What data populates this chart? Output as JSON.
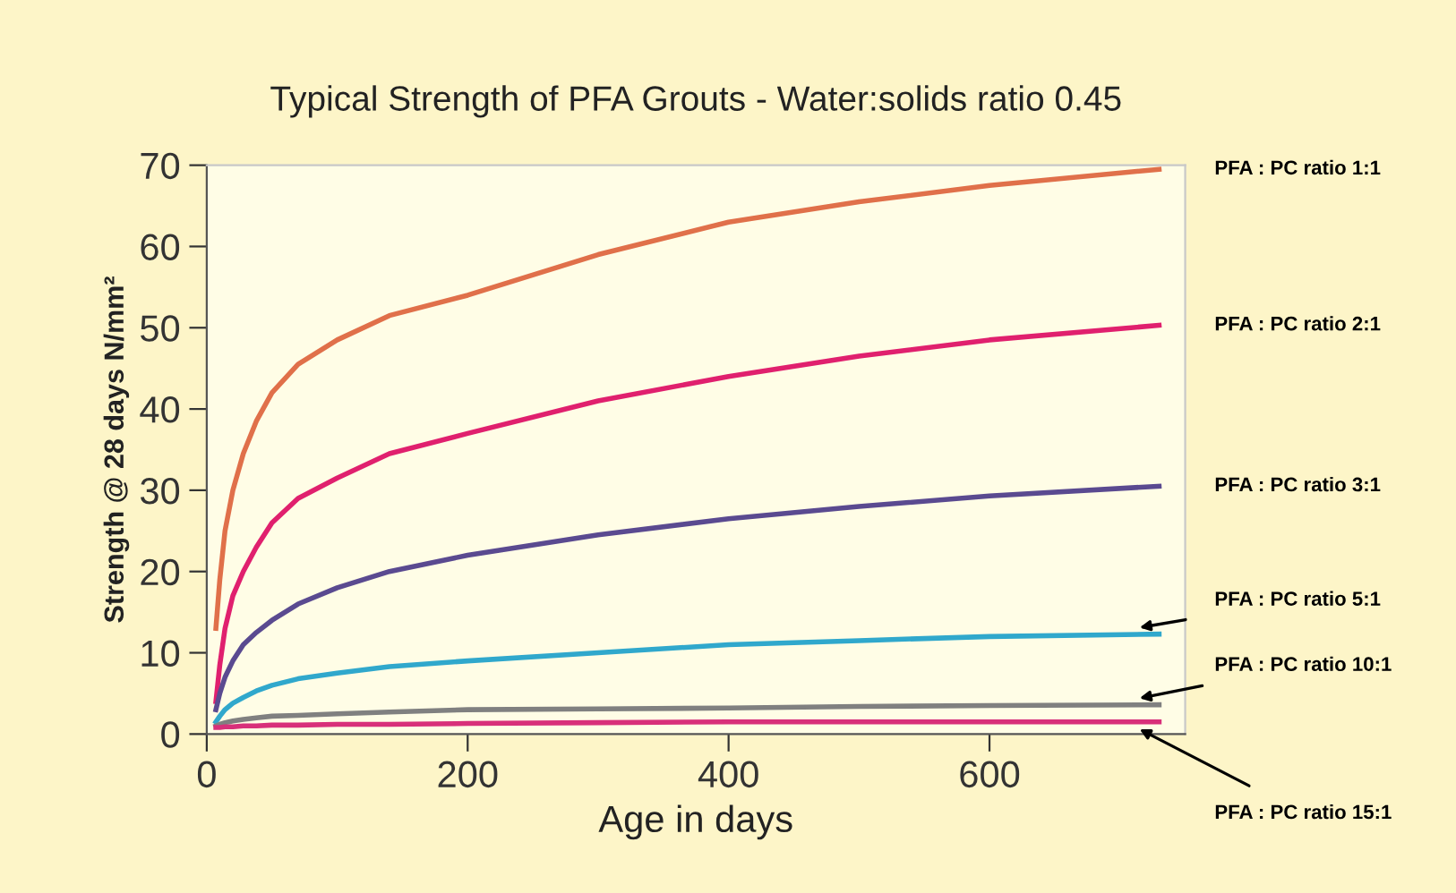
{
  "chart_data": {
    "type": "line",
    "title": "Typical Strength of PFA Grouts - Water:solids ratio 0.45",
    "xlabel": "Age in days",
    "ylabel": "Strength @ 28 days N/mm²",
    "xlim": [
      0,
      750
    ],
    "ylim": [
      0,
      70
    ],
    "xticks": [
      0,
      200,
      400,
      600
    ],
    "yticks": [
      0,
      10,
      20,
      30,
      40,
      50,
      60,
      70
    ],
    "grid": false,
    "legend": false,
    "marker": "none",
    "line_style": "solid",
    "x": [
      7,
      10,
      14,
      20,
      28,
      38,
      50,
      70,
      100,
      140,
      200,
      300,
      400,
      500,
      600,
      730
    ],
    "series": [
      {
        "name": "PFA : PC ratio 1:1",
        "color": "#e0704a",
        "values": [
          13,
          19,
          25,
          30,
          34.5,
          38.5,
          42,
          45.5,
          48.5,
          51.5,
          54,
          59,
          63,
          65.5,
          67.5,
          69.5
        ]
      },
      {
        "name": "PFA : PC ratio 2:1",
        "color": "#e0206e",
        "values": [
          4,
          8.5,
          13,
          17,
          20,
          23,
          26,
          29,
          31.5,
          34.5,
          37,
          41,
          44,
          46.5,
          48.5,
          50.3
        ]
      },
      {
        "name": "PFA : PC ratio 3:1",
        "color": "#5a4a90",
        "values": [
          3,
          5,
          7,
          9,
          11,
          12.5,
          14,
          16,
          18,
          20,
          22,
          24.5,
          26.5,
          28,
          29.3,
          30.5
        ]
      },
      {
        "name": "PFA : PC ratio 5:1",
        "color": "#30a8cc",
        "values": [
          1.5,
          2.2,
          3,
          3.8,
          4.5,
          5.3,
          6,
          6.8,
          7.5,
          8.3,
          9,
          10,
          11,
          11.5,
          12,
          12.3
        ]
      },
      {
        "name": "PFA : PC ratio 10:1",
        "color": "#808080",
        "values": [
          1,
          1.2,
          1.4,
          1.6,
          1.8,
          2,
          2.2,
          2.3,
          2.5,
          2.7,
          3,
          3.1,
          3.2,
          3.4,
          3.5,
          3.6
        ]
      },
      {
        "name": "PFA : PC ratio 15:1",
        "color": "#d8307a",
        "values": [
          0.8,
          0.8,
          0.9,
          0.9,
          1,
          1,
          1.1,
          1.1,
          1.2,
          1.2,
          1.3,
          1.4,
          1.5,
          1.5,
          1.5,
          1.5
        ]
      }
    ]
  }
}
